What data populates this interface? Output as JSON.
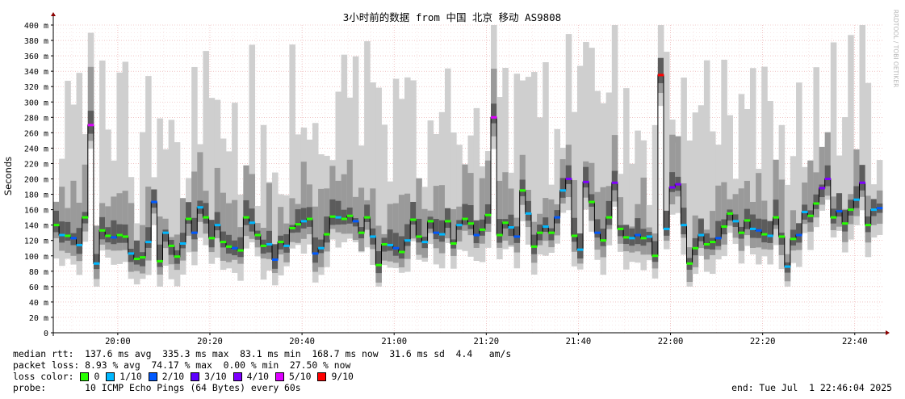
{
  "chart_data": {
    "type": "line",
    "title": "3小时前的数据 from 中国 北京 移动 AS9808",
    "ylabel": "Seconds",
    "watermark": "RRDTOOL / TOBI OETIKER",
    "ylim": [
      0,
      400
    ],
    "y_ticks": [
      "0",
      "20 m",
      "40 m",
      "60 m",
      "80 m",
      "100 m",
      "120 m",
      "140 m",
      "160 m",
      "180 m",
      "200 m",
      "220 m",
      "240 m",
      "260 m",
      "280 m",
      "300 m",
      "320 m",
      "340 m",
      "360 m",
      "380 m",
      "400 m"
    ],
    "x_ticks": [
      "20:00",
      "20:20",
      "20:40",
      "21:00",
      "21:20",
      "21:40",
      "22:00",
      "22:20",
      "22:40"
    ],
    "x_start": "19:46",
    "x_end": "22:46",
    "series_median_ms": [
      140,
      127,
      126,
      123,
      114,
      150,
      270,
      90,
      133,
      126,
      124,
      127,
      125,
      103,
      96,
      98,
      118,
      170,
      93,
      130,
      113,
      99,
      116,
      148,
      130,
      163,
      150,
      123,
      140,
      118,
      112,
      110,
      107,
      150,
      143,
      127,
      113,
      115,
      95,
      118,
      113,
      136,
      141,
      145,
      148,
      103,
      110,
      128,
      151,
      150,
      148,
      152,
      145,
      130,
      150,
      125,
      88,
      115,
      114,
      110,
      105,
      120,
      147,
      125,
      118,
      145,
      130,
      128,
      145,
      116,
      140,
      148,
      142,
      127,
      134,
      153,
      280,
      127,
      143,
      137,
      125,
      185,
      155,
      112,
      130,
      138,
      130,
      150,
      185,
      200,
      126,
      108,
      196,
      170,
      130,
      120,
      150,
      195,
      135,
      124,
      123,
      127,
      123,
      125,
      100,
      335,
      135,
      189,
      193,
      140,
      90,
      110,
      127,
      115,
      118,
      123,
      138,
      155,
      145,
      130,
      146,
      135,
      133,
      128,
      126,
      150,
      125,
      86,
      122,
      127,
      157,
      152,
      168,
      188,
      200,
      150,
      158,
      142,
      160,
      173,
      195,
      140,
      160,
      162
    ]
  },
  "stats": {
    "median_rtt": "median rtt:  137.6 ms avg  335.3 ms max  83.1 ms min  168.7 ms now  31.6 ms sd  4.4   am/s",
    "packet_loss": "packet loss: 8.93 % avg  74.17 % max  0.00 % min  27.50 % now",
    "loss_color_label": "loss color:",
    "probe": "probe:       10 ICMP Echo Pings (64 Bytes) every 60s",
    "end": "end: Tue Jul  1 22:46:04 2025"
  },
  "loss_legend": [
    {
      "label": "0",
      "color": "#26ff00"
    },
    {
      "label": "1/10",
      "color": "#00b8ff"
    },
    {
      "label": "2/10",
      "color": "#0059ff"
    },
    {
      "label": "3/10",
      "color": "#5e00ff"
    },
    {
      "label": "4/10",
      "color": "#7e00ff"
    },
    {
      "label": "5/10",
      "color": "#dd00ff"
    },
    {
      "label": "9/10",
      "color": "#ff0000"
    }
  ]
}
